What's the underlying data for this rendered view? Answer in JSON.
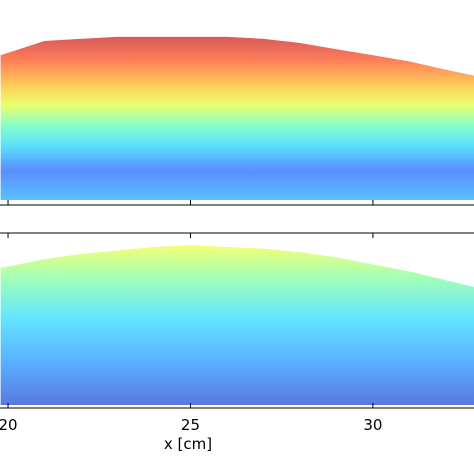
{
  "chart_data": [
    {
      "type": "area",
      "x": [
        19.8,
        21,
        22,
        23,
        24,
        25,
        26,
        27,
        28,
        29,
        30,
        31,
        32,
        32.8
      ],
      "values": [
        0.73,
        0.8,
        0.81,
        0.82,
        0.82,
        0.82,
        0.82,
        0.81,
        0.79,
        0.76,
        0.73,
        0.7,
        0.66,
        0.63
      ],
      "xlim": [
        19.78,
        32.77
      ],
      "ylim": [
        0,
        1
      ]
    },
    {
      "type": "area",
      "x": [
        19.8,
        21,
        22,
        23,
        24,
        25,
        26,
        27,
        28,
        29,
        30,
        31,
        32,
        32.8
      ],
      "values": [
        0.8,
        0.85,
        0.88,
        0.9,
        0.92,
        0.93,
        0.92,
        0.91,
        0.89,
        0.86,
        0.82,
        0.78,
        0.73,
        0.69
      ],
      "xlim": [
        19.78,
        32.77
      ],
      "ylim": [
        0,
        1
      ],
      "xticks": [
        20,
        25,
        30
      ],
      "xlabel": "x [cm]"
    }
  ]
}
